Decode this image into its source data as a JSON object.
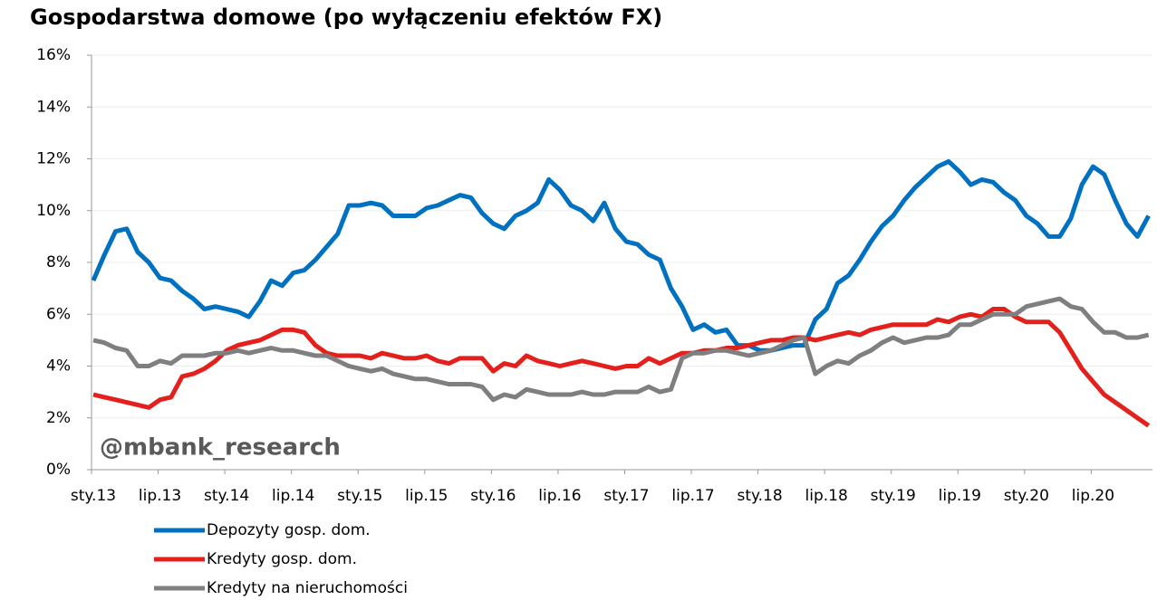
{
  "chart_data": {
    "type": "line",
    "title": "Gospodarstwa domowe (po wyłączeniu efektów FX)",
    "annotation": "@mbank_research",
    "categories": [
      "sty.13",
      null,
      null,
      null,
      null,
      null,
      "lip.13",
      null,
      null,
      null,
      null,
      null,
      "sty.14",
      null,
      null,
      null,
      null,
      null,
      "lip.14",
      null,
      null,
      null,
      null,
      null,
      "sty.15",
      null,
      null,
      null,
      null,
      null,
      "lip.15",
      null,
      null,
      null,
      null,
      null,
      "sty.16",
      null,
      null,
      null,
      null,
      null,
      "lip.16",
      null,
      null,
      null,
      null,
      null,
      "sty.17",
      null,
      null,
      null,
      null,
      null,
      "lip.17",
      null,
      null,
      null,
      null,
      null,
      "sty.18",
      null,
      null,
      null,
      null,
      null,
      "lip.18",
      null,
      null,
      null,
      null,
      null,
      "sty.19",
      null,
      null,
      null,
      null,
      null,
      "lip.19",
      null,
      null,
      null,
      null,
      null,
      "sty.20",
      null,
      null,
      null,
      null,
      null,
      "lip.20",
      null,
      null,
      null,
      null,
      null
    ],
    "series": [
      {
        "name": "Depozyty gosp. dom.",
        "color": "#0070c0",
        "values": [
          7.3,
          8.3,
          9.2,
          9.3,
          8.4,
          8.0,
          7.4,
          7.3,
          6.9,
          6.6,
          6.2,
          6.3,
          6.2,
          6.1,
          5.9,
          6.5,
          7.3,
          7.1,
          7.6,
          7.7,
          8.1,
          8.6,
          9.1,
          10.2,
          10.2,
          10.3,
          10.2,
          9.8,
          9.8,
          9.8,
          10.1,
          10.2,
          10.4,
          10.6,
          10.5,
          9.9,
          9.5,
          9.3,
          9.8,
          10.0,
          10.3,
          11.2,
          10.8,
          10.2,
          10.0,
          9.6,
          10.3,
          9.3,
          8.8,
          8.7,
          8.3,
          8.1,
          7.0,
          6.3,
          5.4,
          5.6,
          5.3,
          5.4,
          4.8,
          4.8,
          4.6,
          4.6,
          4.7,
          4.8,
          4.8,
          5.8,
          6.2,
          7.2,
          7.5,
          8.1,
          8.8,
          9.4,
          9.8,
          10.4,
          10.9,
          11.3,
          11.7,
          11.9,
          11.5,
          11.0,
          11.2,
          11.1,
          10.7,
          10.4,
          9.8,
          9.5,
          9.0,
          9.0,
          9.7,
          11.0,
          11.7,
          11.4,
          10.4,
          9.5,
          9.0,
          9.8
        ]
      },
      {
        "name": "Kredyty gosp. dom.",
        "color": "#e3201b",
        "values": [
          2.9,
          2.8,
          2.7,
          2.6,
          2.5,
          2.4,
          2.7,
          2.8,
          3.6,
          3.7,
          3.9,
          4.2,
          4.6,
          4.8,
          4.9,
          5.0,
          5.2,
          5.4,
          5.4,
          5.3,
          4.8,
          4.5,
          4.4,
          4.4,
          4.4,
          4.3,
          4.5,
          4.4,
          4.3,
          4.3,
          4.4,
          4.2,
          4.1,
          4.3,
          4.3,
          4.3,
          3.8,
          4.1,
          4.0,
          4.4,
          4.2,
          4.1,
          4.0,
          4.1,
          4.2,
          4.1,
          4.0,
          3.9,
          4.0,
          4.0,
          4.3,
          4.1,
          4.3,
          4.5,
          4.5,
          4.6,
          4.6,
          4.7,
          4.7,
          4.8,
          4.9,
          5.0,
          5.0,
          5.1,
          5.1,
          5.0,
          5.1,
          5.2,
          5.3,
          5.2,
          5.4,
          5.5,
          5.6,
          5.6,
          5.6,
          5.6,
          5.8,
          5.7,
          5.9,
          6.0,
          5.9,
          6.2,
          6.2,
          5.9,
          5.7,
          5.7,
          5.7,
          5.3,
          4.6,
          3.9,
          3.4,
          2.9,
          2.6,
          2.3,
          2.0,
          1.7
        ]
      },
      {
        "name": "Kredyty na nieruchomości",
        "color": "#7f7f7f",
        "values": [
          5.0,
          4.9,
          4.7,
          4.6,
          4.0,
          4.0,
          4.2,
          4.1,
          4.4,
          4.4,
          4.4,
          4.5,
          4.5,
          4.6,
          4.5,
          4.6,
          4.7,
          4.6,
          4.6,
          4.5,
          4.4,
          4.4,
          4.2,
          4.0,
          3.9,
          3.8,
          3.9,
          3.7,
          3.6,
          3.5,
          3.5,
          3.4,
          3.3,
          3.3,
          3.3,
          3.2,
          2.7,
          2.9,
          2.8,
          3.1,
          3.0,
          2.9,
          2.9,
          2.9,
          3.0,
          2.9,
          2.9,
          3.0,
          3.0,
          3.0,
          3.2,
          3.0,
          3.1,
          4.3,
          4.5,
          4.5,
          4.6,
          4.6,
          4.5,
          4.4,
          4.5,
          4.6,
          4.8,
          5.0,
          5.1,
          3.7,
          4.0,
          4.2,
          4.1,
          4.4,
          4.6,
          4.9,
          5.1,
          4.9,
          5.0,
          5.1,
          5.1,
          5.2,
          5.6,
          5.6,
          5.8,
          6.0,
          6.0,
          6.0,
          6.3,
          6.4,
          6.5,
          6.6,
          6.3,
          6.2,
          5.7,
          5.3,
          5.3,
          5.1,
          5.1,
          5.2
        ]
      }
    ],
    "ylim": [
      0,
      16
    ],
    "yticks": [
      {
        "value": 0,
        "label": "0%"
      },
      {
        "value": 2,
        "label": "2%"
      },
      {
        "value": 4,
        "label": "4%"
      },
      {
        "value": 6,
        "label": "6%"
      },
      {
        "value": 8,
        "label": "8%"
      },
      {
        "value": 10,
        "label": "10%"
      },
      {
        "value": 12,
        "label": "12%"
      },
      {
        "value": 14,
        "label": "14%"
      },
      {
        "value": 16,
        "label": "16%"
      }
    ],
    "grid": true
  }
}
